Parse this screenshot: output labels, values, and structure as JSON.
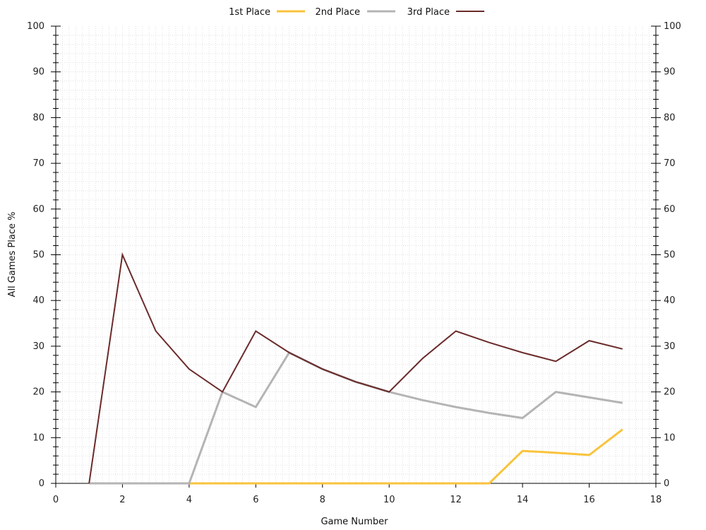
{
  "chart_data": {
    "type": "line",
    "xlabel": "Game Number",
    "ylabel": "All Games Place %",
    "xlim": [
      0,
      18
    ],
    "ylim": [
      0,
      100
    ],
    "xticks": [
      0,
      2,
      4,
      6,
      8,
      10,
      12,
      14,
      16,
      18
    ],
    "yticks": [
      0,
      10,
      20,
      30,
      40,
      50,
      60,
      70,
      80,
      90,
      100
    ],
    "grid": true,
    "legend_position": "top-center",
    "x": [
      1,
      2,
      3,
      4,
      5,
      6,
      7,
      8,
      9,
      10,
      11,
      12,
      13,
      14,
      15,
      16,
      17
    ],
    "series": [
      {
        "name": "1st Place",
        "color": "#f9c33c",
        "values": [
          0,
          0,
          0,
          0,
          0,
          0,
          0,
          0,
          0,
          0,
          0,
          0,
          0,
          7.1,
          6.7,
          6.2,
          11.8
        ]
      },
      {
        "name": "2nd Place",
        "color": "#b4b4b4",
        "values": [
          0,
          0,
          0,
          0,
          20,
          16.7,
          28.6,
          25,
          22.2,
          20,
          18.2,
          16.7,
          15.4,
          14.3,
          20,
          18.8,
          17.6
        ]
      },
      {
        "name": "3rd Place",
        "color": "#6b2a2a",
        "values": [
          0,
          50,
          33.3,
          25,
          20,
          33.3,
          28.6,
          25,
          22.2,
          20,
          27.3,
          33.3,
          30.8,
          28.6,
          26.7,
          31.2,
          29.4
        ]
      }
    ]
  }
}
